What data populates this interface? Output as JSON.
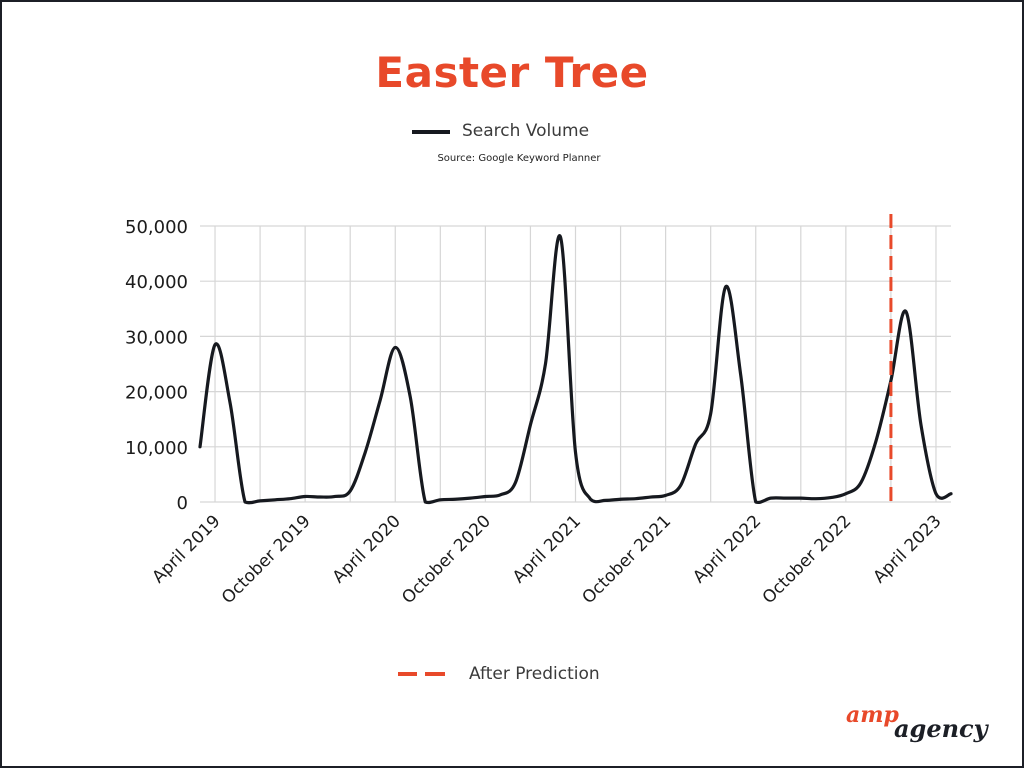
{
  "chart_data": {
    "type": "line",
    "title": "Easter Tree",
    "subtitle": "Source: Google Keyword Planner",
    "legend": [
      {
        "name": "Search Volume",
        "color": "#16191f",
        "style": "solid"
      },
      {
        "name": "After Prediction",
        "color": "#e8492a",
        "style": "dashed"
      }
    ],
    "xlabel": "",
    "ylabel": "",
    "ylim": [
      0,
      50000
    ],
    "yticks": [
      {
        "value": 0,
        "label": "0"
      },
      {
        "value": 10000,
        "label": "10,000"
      },
      {
        "value": 20000,
        "label": "20,000"
      },
      {
        "value": 30000,
        "label": "30,000"
      },
      {
        "value": 40000,
        "label": "40,000"
      },
      {
        "value": 50000,
        "label": "50,000"
      }
    ],
    "xlim": [
      "2019-03",
      "2023-05"
    ],
    "xticks": [
      {
        "value": "2019-04",
        "label": "April 2019"
      },
      {
        "value": "2019-10",
        "label": "October 2019"
      },
      {
        "value": "2020-04",
        "label": "April 2020"
      },
      {
        "value": "2020-10",
        "label": "October 2020"
      },
      {
        "value": "2021-04",
        "label": "April 2021"
      },
      {
        "value": "2021-10",
        "label": "October 2021"
      },
      {
        "value": "2022-04",
        "label": "April 2022"
      },
      {
        "value": "2022-10",
        "label": "October 2022"
      },
      {
        "value": "2023-04",
        "label": "April 2023"
      }
    ],
    "grid": true,
    "series": [
      {
        "name": "Search Volume",
        "x": [
          "2019-03",
          "2019-04",
          "2019-05",
          "2019-06",
          "2019-07",
          "2019-08",
          "2019-09",
          "2019-10",
          "2019-11",
          "2019-12",
          "2020-01",
          "2020-02",
          "2020-03",
          "2020-04",
          "2020-05",
          "2020-06",
          "2020-07",
          "2020-08",
          "2020-09",
          "2020-10",
          "2020-11",
          "2020-12",
          "2021-01",
          "2021-02",
          "2021-03",
          "2021-04",
          "2021-05",
          "2021-06",
          "2021-07",
          "2021-08",
          "2021-09",
          "2021-10",
          "2021-11",
          "2021-12",
          "2022-01",
          "2022-02",
          "2022-03",
          "2022-04",
          "2022-05",
          "2022-06",
          "2022-07",
          "2022-08",
          "2022-09",
          "2022-10",
          "2022-11",
          "2022-12",
          "2023-01",
          "2023-02",
          "2023-03",
          "2023-04",
          "2023-05"
        ],
        "values": [
          10000,
          28500,
          18000,
          0,
          200,
          400,
          600,
          1000,
          900,
          1000,
          2000,
          9000,
          18500,
          28000,
          19000,
          0,
          400,
          500,
          700,
          1000,
          1300,
          3500,
          14000,
          25000,
          48000,
          9000,
          500,
          300,
          500,
          600,
          900,
          1200,
          3000,
          10500,
          16000,
          39000,
          23000,
          0,
          700,
          700,
          700,
          600,
          800,
          1500,
          3500,
          11000,
          22000,
          34500,
          14000,
          1500,
          1500
        ],
        "values_note": "",
        "color": "#16191f"
      }
    ],
    "prediction_marker": {
      "x": "2023-01",
      "label": "After Prediction",
      "color": "#e8492a"
    }
  },
  "logo": {
    "amp": "amp",
    "agency": "agency"
  }
}
